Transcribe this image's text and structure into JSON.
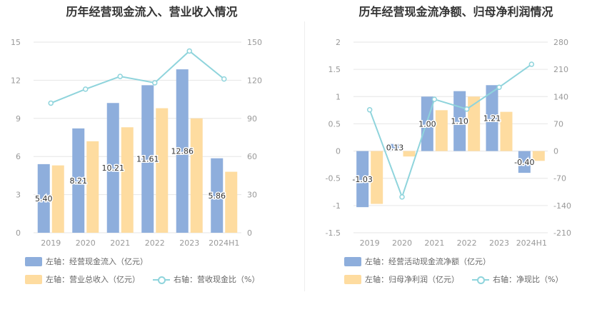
{
  "colors": {
    "blue": "#8eaedc",
    "orange": "#fedca0",
    "cyan": "#8fd4dc",
    "grid": "#e6e6e6",
    "axis_text": "#999999",
    "label_text": "#333333"
  },
  "chart_data": [
    {
      "type": "bar",
      "title": "历年经营现金流入、营业收入情况",
      "categories": [
        "2019",
        "2020",
        "2021",
        "2022",
        "2023",
        "2024H1"
      ],
      "y_left_ticks": [
        "0",
        "3",
        "6",
        "9",
        "12",
        "15"
      ],
      "y_right_ticks": [
        "0",
        "30",
        "60",
        "90",
        "120",
        "150"
      ],
      "ylim_left": [
        0,
        15
      ],
      "ylim_right": [
        0,
        150
      ],
      "series": [
        {
          "name": "左轴：经营现金流入（亿元）",
          "axis": "left",
          "kind": "bar",
          "color": "#8eaedc",
          "values": [
            5.4,
            8.21,
            10.21,
            11.61,
            12.86,
            5.86
          ],
          "labels": [
            "5.40",
            "8.21",
            "10.21",
            "11.61",
            "12.86",
            "5.86"
          ]
        },
        {
          "name": "左轴：营业总收入（亿元）",
          "axis": "left",
          "kind": "bar",
          "color": "#fedca0",
          "values": [
            5.3,
            7.2,
            8.3,
            9.8,
            9.0,
            4.8
          ]
        },
        {
          "name": "右轴：营收现金比（%）",
          "axis": "right",
          "kind": "line",
          "color": "#8fd4dc",
          "values": [
            102,
            113,
            123,
            118,
            143,
            121
          ]
        }
      ]
    },
    {
      "type": "bar",
      "title": "历年经营现金流净额、归母净利润情况",
      "categories": [
        "2019",
        "2020",
        "2021",
        "2022",
        "2023",
        "2024H1"
      ],
      "y_left_ticks": [
        "-1.5",
        "-1",
        "-0.5",
        "0",
        "0.5",
        "1",
        "1.5",
        "2"
      ],
      "y_right_ticks": [
        "-210",
        "-140",
        "-70",
        "0",
        "70",
        "140",
        "210",
        "280"
      ],
      "ylim_left": [
        -1.5,
        2
      ],
      "ylim_right": [
        -210,
        280
      ],
      "series": [
        {
          "name": "左轴：经营活动现金流净额（亿元）",
          "axis": "left",
          "kind": "bar",
          "color": "#8eaedc",
          "values": [
            -1.03,
            0.13,
            1.0,
            1.1,
            1.21,
            -0.4
          ],
          "labels": [
            "-1.03",
            "0.13",
            "1.00",
            "1.10",
            "1.21",
            "-0.40"
          ]
        },
        {
          "name": "左轴：归母净利润（亿元）",
          "axis": "left",
          "kind": "bar",
          "color": "#fedca0",
          "values": [
            -0.97,
            -0.1,
            0.75,
            1.0,
            0.72,
            -0.18
          ]
        },
        {
          "name": "右轴：净现比（%）",
          "axis": "right",
          "kind": "line",
          "color": "#8fd4dc",
          "values": [
            106,
            -118,
            133,
            108,
            164,
            223
          ]
        }
      ]
    }
  ]
}
